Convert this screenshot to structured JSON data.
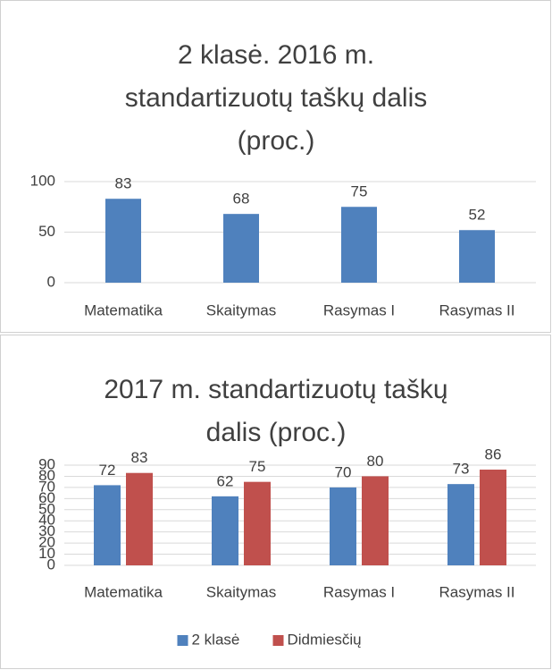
{
  "chart_data": [
    {
      "type": "bar",
      "title": "2 klasė. 2016 m. standartizuotų taškų dalis (proc.)",
      "categories": [
        "Matematika",
        "Skaitymas",
        "Rasymas I",
        "Rasymas II"
      ],
      "series": [
        {
          "name": null,
          "color": "#4f81bd",
          "values": [
            83,
            68,
            75,
            52
          ]
        }
      ],
      "ylim": [
        0,
        100
      ],
      "yticks": [
        0,
        50,
        100
      ],
      "grid": true,
      "legend": false
    },
    {
      "type": "bar",
      "title": "2017 m. standartizuotų taškų dalis (proc.)",
      "categories": [
        "Matematika",
        "Skaitymas",
        "Rasymas I",
        "Rasymas II"
      ],
      "series": [
        {
          "name": "2 klasė",
          "color": "#4f81bd",
          "values": [
            72,
            62,
            70,
            73
          ]
        },
        {
          "name": "Didmiesčių",
          "color": "#c0504d",
          "values": [
            83,
            75,
            80,
            86
          ]
        }
      ],
      "ylim": [
        0,
        90
      ],
      "yticks": [
        0,
        10,
        20,
        30,
        40,
        50,
        60,
        70,
        80,
        90
      ],
      "grid": true,
      "legend": "bottom"
    }
  ]
}
